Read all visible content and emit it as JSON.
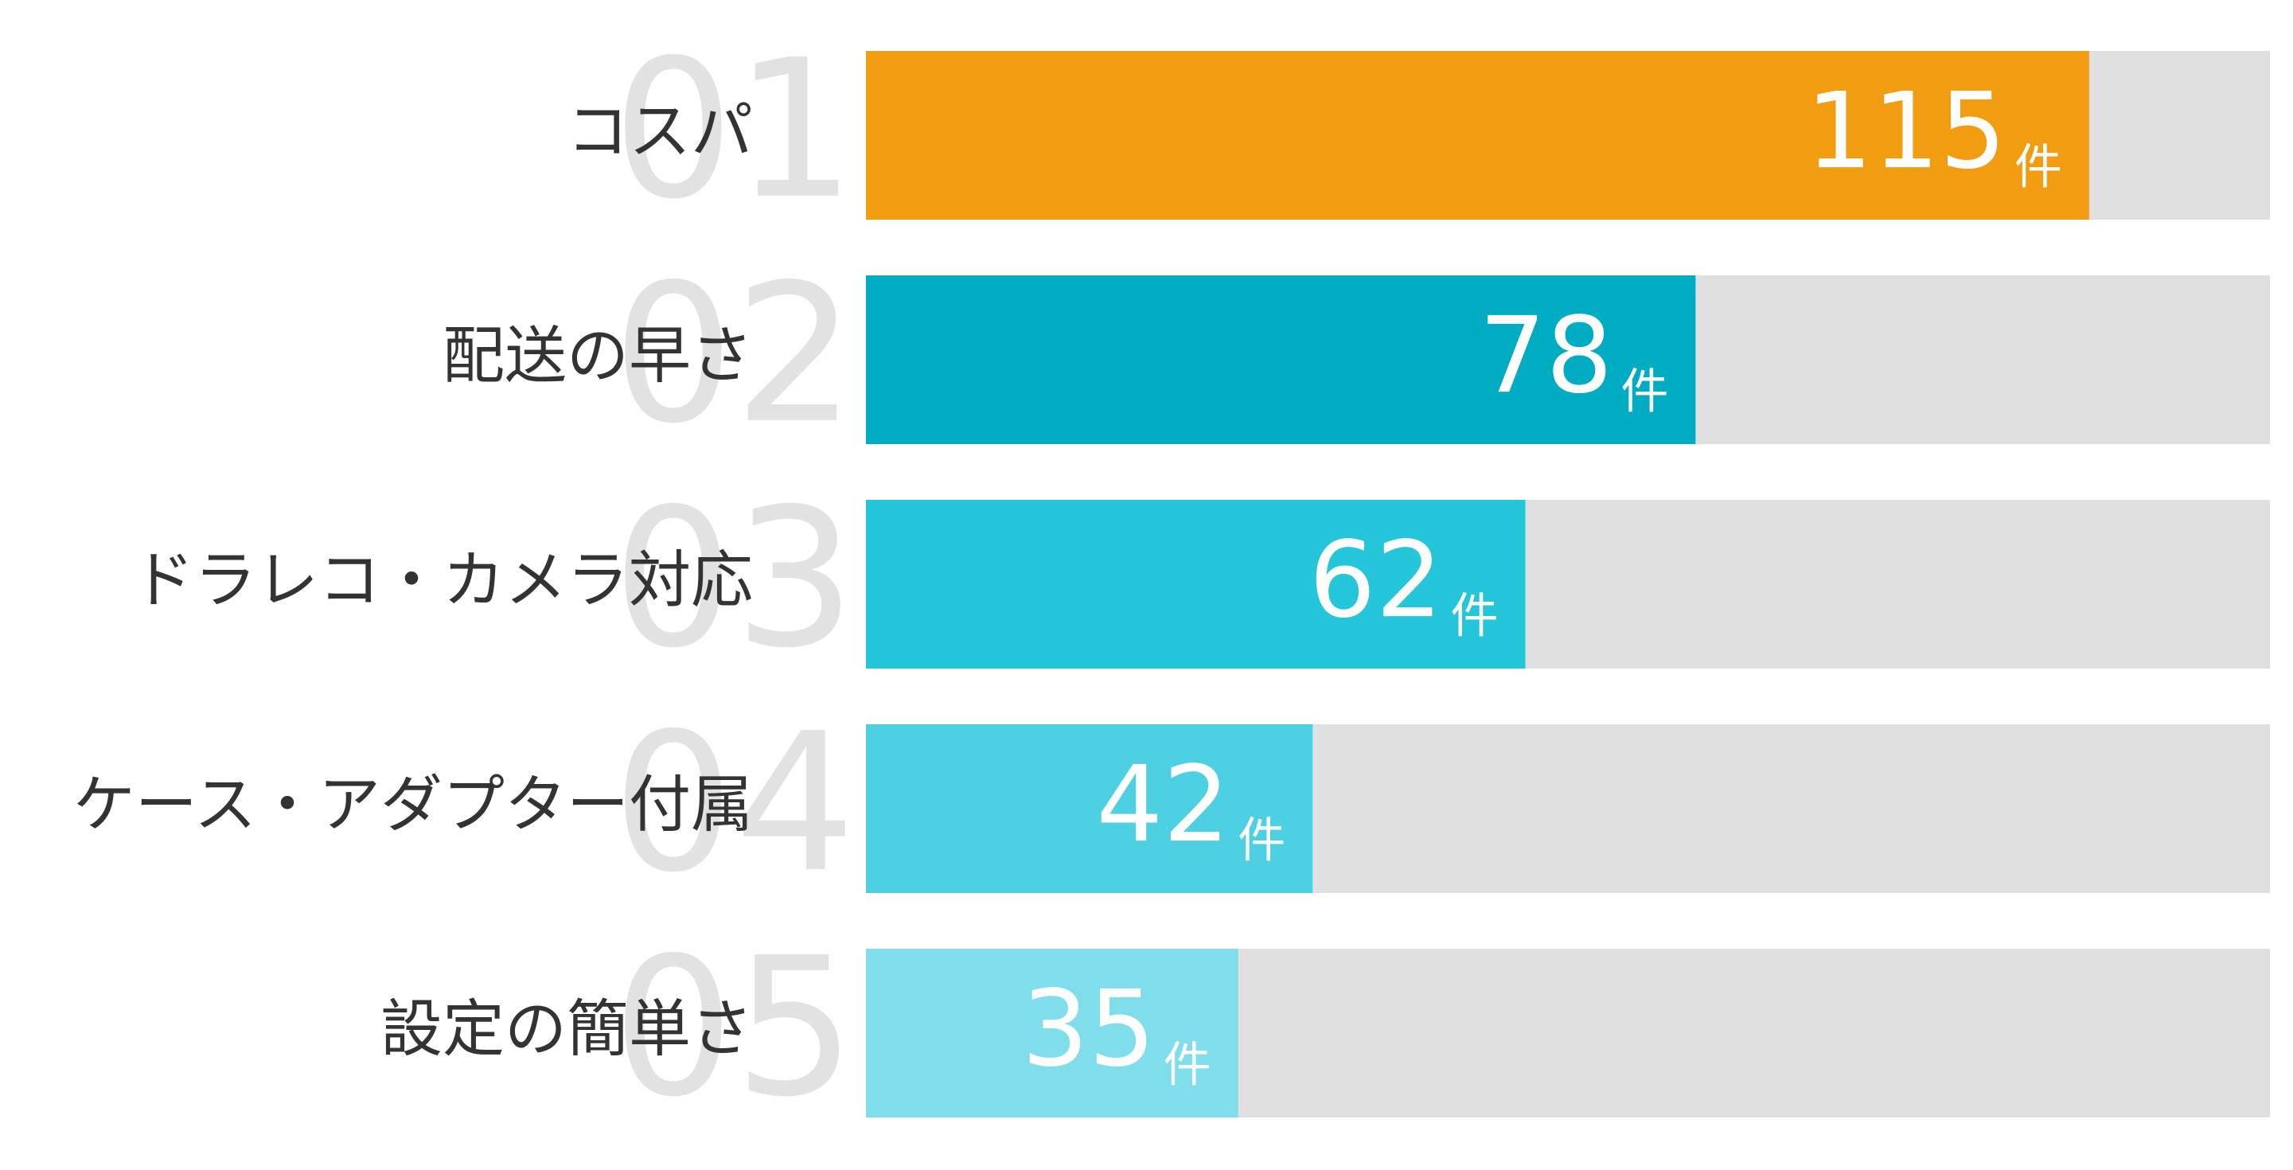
{
  "chart_data": {
    "type": "hbar",
    "categories": [
      "コスパ",
      "配送の早さ",
      "ドラレコ・カメラ対応",
      "ケース・アダプター付属",
      "設定の簡単さ"
    ],
    "ranks": [
      "01",
      "02",
      "03",
      "04",
      "05"
    ],
    "values": [
      115,
      78,
      62,
      42,
      35
    ],
    "unit": "件",
    "colors": [
      "#f29c12",
      "#00acc1",
      "#26c6da",
      "#4dd0e1",
      "#80deea"
    ],
    "track_color": "#e0e0e0",
    "xlim": [
      0,
      132
    ]
  }
}
